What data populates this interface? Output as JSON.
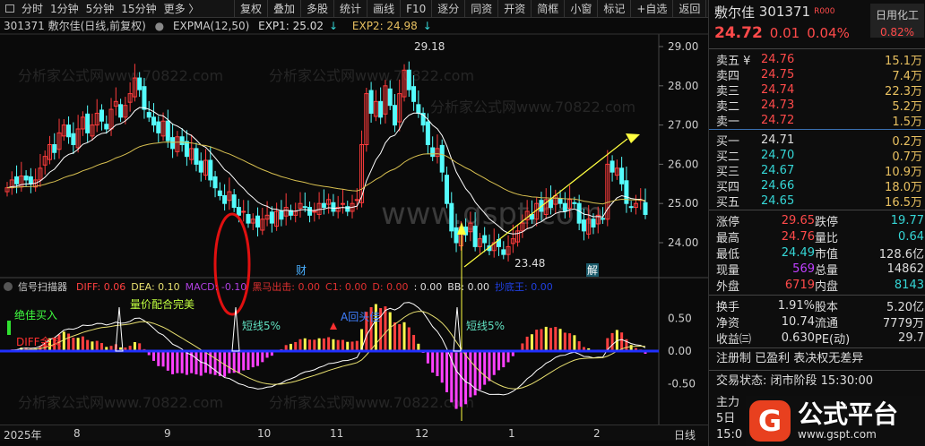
{
  "toolbar": {
    "periods": [
      "分时",
      "1分钟",
      "5分钟",
      "15分钟",
      "更多 〉"
    ],
    "buttons": [
      "复权",
      "叠加",
      "多股",
      "统计",
      "画线",
      "F10",
      "逐分",
      "同资",
      "开资",
      "简框",
      "小窗",
      "标记",
      "+自选",
      "返回"
    ]
  },
  "info": {
    "title": "301371 敷尔佳(日线,前复权)",
    "indicator": "EXPMA(12,50)",
    "exp1": "EXP1: 25.02",
    "exp2": "EXP2: 24.98",
    "arrow": "↓"
  },
  "chart": {
    "y_ticks": [
      "29.00",
      "28.00",
      "27.00",
      "26.00",
      "25.00",
      "24.00"
    ],
    "y_values": [
      29,
      28,
      27,
      26,
      25,
      24
    ],
    "high_label": "29.18",
    "low_label": "23.48",
    "marks": {
      "cai": "财",
      "jie": "解"
    },
    "watermark": "分析家公式网www.70822.com",
    "watermark_big": "www.gspt.com",
    "closes": [
      25.4,
      25.6,
      25.5,
      25.7,
      25.6,
      25.5,
      25.6,
      25.9,
      26.2,
      26.5,
      26.3,
      26.8,
      27.0,
      26.7,
      26.5,
      26.9,
      27.2,
      26.8,
      27.0,
      27.3,
      27.1,
      26.9,
      27.4,
      27.6,
      27.2,
      27.5,
      27.8,
      28.2,
      27.9,
      27.4,
      27.2,
      27.0,
      26.8,
      27.1,
      26.6,
      26.4,
      26.7,
      26.5,
      26.2,
      26.4,
      26.0,
      25.8,
      26.1,
      25.6,
      25.4,
      25.2,
      25.0,
      25.3,
      24.9,
      24.7,
      24.8,
      24.5,
      24.6,
      24.4,
      24.6,
      24.7,
      24.5,
      24.8,
      24.6,
      24.9,
      24.7,
      24.8,
      25.0,
      24.9,
      24.7,
      24.8,
      25.0,
      24.9,
      25.1,
      24.8,
      24.9,
      25.0,
      24.8,
      25.0,
      25.1,
      26.5,
      27.8,
      27.3,
      27.6,
      27.2,
      28.0,
      27.5,
      27.0,
      27.8,
      28.4,
      27.9,
      27.6,
      27.3,
      27.0,
      26.5,
      26.2,
      26.4,
      25.8,
      25.0,
      24.3,
      24.0,
      24.4,
      24.2,
      24.5,
      23.9,
      24.1,
      24.0,
      23.8,
      24.0,
      23.9,
      23.7,
      23.9,
      24.1,
      24.3,
      24.5,
      24.8,
      24.6,
      25.0,
      24.8,
      25.1,
      24.9,
      25.2,
      25.0,
      24.8,
      25.1,
      25.0,
      24.5,
      24.3,
      24.6,
      24.4,
      24.7,
      24.6,
      26.0,
      25.8,
      25.9,
      25.5,
      25.0,
      24.9,
      25.0,
      25.1,
      24.72
    ],
    "colors": {
      "up": "#ff3c3c",
      "down": "#54fcfc",
      "exp1": "#ffffff",
      "exp2": "#d8c050",
      "arrow": "#ffff40"
    }
  },
  "macd_panel": {
    "title": "信号扫描器",
    "diff": "DIFF: 0.06",
    "dea": "DEA: 0.10",
    "macd": "MACD: -0.10",
    "heima": "黑马出击: 0.00",
    "c1": "C1: 0.00",
    "d": "D: 0.00",
    ":": ": 0.00",
    "bb": "BB: 0.00",
    "chaodi": "抄底王: 0.00",
    "y_ticks": [
      "0.50",
      "0.00",
      "-0.50"
    ],
    "signals": {
      "buy": "绝佳买入",
      "golden": "DIFF金叉",
      "volume": "量价配合完美",
      "short1": "短线5%",
      "short2": "短线5%",
      "back": "A回头佳"
    }
  },
  "x_axis": {
    "labels": [
      "2025年",
      "8",
      "9",
      "10",
      "11",
      "12",
      "1",
      "2"
    ],
    "period": "日线"
  },
  "quote": {
    "name": "敷尔佳",
    "code": "301371",
    "tag": "R000",
    "sector": "日用化工",
    "sector_change": "0.82%",
    "price": "24.72",
    "change": "0.01",
    "pct": "0.04%",
    "asks": [
      {
        "label": "卖五 ¥",
        "price": "24.76",
        "vol": "15.1万"
      },
      {
        "label": "卖四",
        "price": "24.75",
        "vol": "7.4万"
      },
      {
        "label": "卖三",
        "price": "24.74",
        "vol": "22.3万"
      },
      {
        "label": "卖二",
        "price": "24.73",
        "vol": "5.2万"
      },
      {
        "label": "卖一",
        "price": "24.72",
        "vol": "1.5万"
      }
    ],
    "bids": [
      {
        "label": "买一",
        "price": "24.71",
        "vol": "0.2万"
      },
      {
        "label": "买二",
        "price": "24.70",
        "vol": "0.7万"
      },
      {
        "label": "买三",
        "price": "24.67",
        "vol": "10.9万"
      },
      {
        "label": "买四",
        "price": "24.66",
        "vol": "18.0万"
      },
      {
        "label": "买五",
        "price": "24.65",
        "vol": "16.5万"
      }
    ],
    "stats1": [
      [
        "涨停",
        "29.65",
        "跌停",
        "19.77"
      ],
      [
        "最高",
        "24.76",
        "量比",
        "0.64"
      ],
      [
        "最低",
        "24.49",
        "市值",
        "128.6亿"
      ],
      [
        "现量",
        "569",
        "总量",
        "14862"
      ],
      [
        "外盘",
        "6719",
        "内盘",
        "8143"
      ]
    ],
    "stats2": [
      [
        "换手",
        "1.91%",
        "股本",
        "5.20亿"
      ],
      [
        "净资",
        "10.74",
        "流通",
        "7779万"
      ],
      [
        "收益㈢",
        "0.630",
        "PE(动)",
        "29.7"
      ]
    ],
    "tags": "注册制 已盈利 表决权无差异",
    "status": "交易状态: 闭市阶段 15:30:00",
    "partial": [
      "主力",
      "5日",
      "15:0"
    ]
  },
  "logo": {
    "text": "公式平台",
    "url": "www.gspt.com"
  }
}
